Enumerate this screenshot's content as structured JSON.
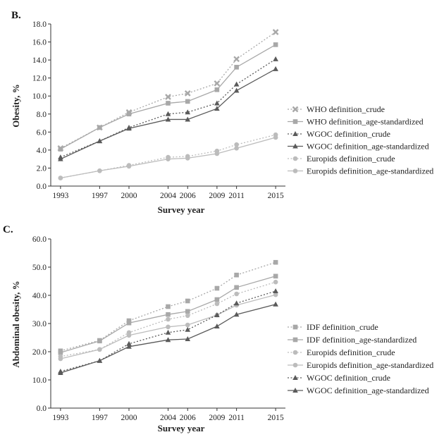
{
  "chart_data": [
    {
      "panel_label": "B.",
      "type": "line",
      "x": [
        1993,
        1997,
        2000,
        2004,
        2006,
        2009,
        2011,
        2015
      ],
      "xlabel": "Survey year",
      "ylabel": "Obesity, %",
      "ylim": [
        0,
        18
      ],
      "yticks": [
        "0.0",
        "2.0",
        "4.0",
        "6.0",
        "8.0",
        "10.0",
        "12.0",
        "14.0",
        "16.0",
        "18.0"
      ],
      "legend_position": "right",
      "grid": false,
      "series": [
        {
          "name": "WHO definition_crude",
          "values": [
            4.2,
            6.5,
            8.2,
            9.9,
            10.3,
            11.4,
            14.1,
            17.1
          ],
          "color": "#a8a8a8",
          "dash": "dotted",
          "marker": "x-cross"
        },
        {
          "name": "WHO definition_age-standardized",
          "values": [
            4.1,
            6.5,
            8.0,
            9.2,
            9.4,
            10.7,
            13.2,
            15.7
          ],
          "color": "#a8a8a8",
          "dash": "solid",
          "marker": "square"
        },
        {
          "name": "WGOC definition_crude",
          "values": [
            3.2,
            5.0,
            6.5,
            8.0,
            8.2,
            9.2,
            11.3,
            14.1
          ],
          "color": "#5a5a5a",
          "dash": "dotted",
          "marker": "triangle"
        },
        {
          "name": "WGOC definition_age-standardized",
          "values": [
            3.0,
            5.0,
            6.4,
            7.4,
            7.4,
            8.6,
            10.6,
            13.0
          ],
          "color": "#5a5a5a",
          "dash": "solid",
          "marker": "triangle"
        },
        {
          "name": "Europids definition_crude",
          "values": [
            0.9,
            1.7,
            2.3,
            3.2,
            3.3,
            3.9,
            4.6,
            5.7
          ],
          "color": "#bcbcbc",
          "dash": "dotted",
          "marker": "circle"
        },
        {
          "name": "Europids definition_age-standardized",
          "values": [
            0.9,
            1.7,
            2.2,
            3.0,
            3.1,
            3.6,
            4.2,
            5.4
          ],
          "color": "#bcbcbc",
          "dash": "solid",
          "marker": "circle"
        }
      ]
    },
    {
      "panel_label": "C.",
      "type": "line",
      "x": [
        1993,
        1997,
        2000,
        2004,
        2006,
        2009,
        2011,
        2015
      ],
      "xlabel": "Survey year",
      "ylabel": "Abdominal obesity, %",
      "ylim": [
        0,
        60
      ],
      "yticks": [
        "0.0",
        "10.0",
        "20.0",
        "30.0",
        "40.0",
        "50.0",
        "60.0"
      ],
      "legend_position": "right",
      "grid": false,
      "series": [
        {
          "name": "IDF definition_crude",
          "values": [
            20.3,
            24.0,
            31.0,
            36.0,
            38.0,
            42.5,
            47.2,
            51.7
          ],
          "color": "#a8a8a8",
          "dash": "dotted",
          "marker": "square"
        },
        {
          "name": "IDF definition_age-standardized",
          "values": [
            19.7,
            23.8,
            30.2,
            33.2,
            34.3,
            38.5,
            42.8,
            46.8
          ],
          "color": "#a8a8a8",
          "dash": "solid",
          "marker": "square"
        },
        {
          "name": "Europids definition_crude",
          "values": [
            18.3,
            20.8,
            26.8,
            31.5,
            32.8,
            37.0,
            40.5,
            44.7
          ],
          "color": "#bcbcbc",
          "dash": "dotted",
          "marker": "circle"
        },
        {
          "name": "Europids definition_age-standardized",
          "values": [
            17.5,
            20.8,
            25.8,
            28.8,
            29.5,
            33.0,
            36.5,
            40.2
          ],
          "color": "#bcbcbc",
          "dash": "solid",
          "marker": "circle"
        },
        {
          "name": "WGOC definition_crude",
          "values": [
            13.0,
            16.8,
            22.8,
            26.8,
            27.8,
            33.0,
            37.2,
            41.5
          ],
          "color": "#5a5a5a",
          "dash": "dotted",
          "marker": "triangle"
        },
        {
          "name": "WGOC definition_age-standardized",
          "values": [
            12.5,
            16.8,
            21.8,
            24.2,
            24.5,
            29.0,
            33.2,
            36.8
          ],
          "color": "#5a5a5a",
          "dash": "solid",
          "marker": "triangle"
        }
      ]
    }
  ]
}
